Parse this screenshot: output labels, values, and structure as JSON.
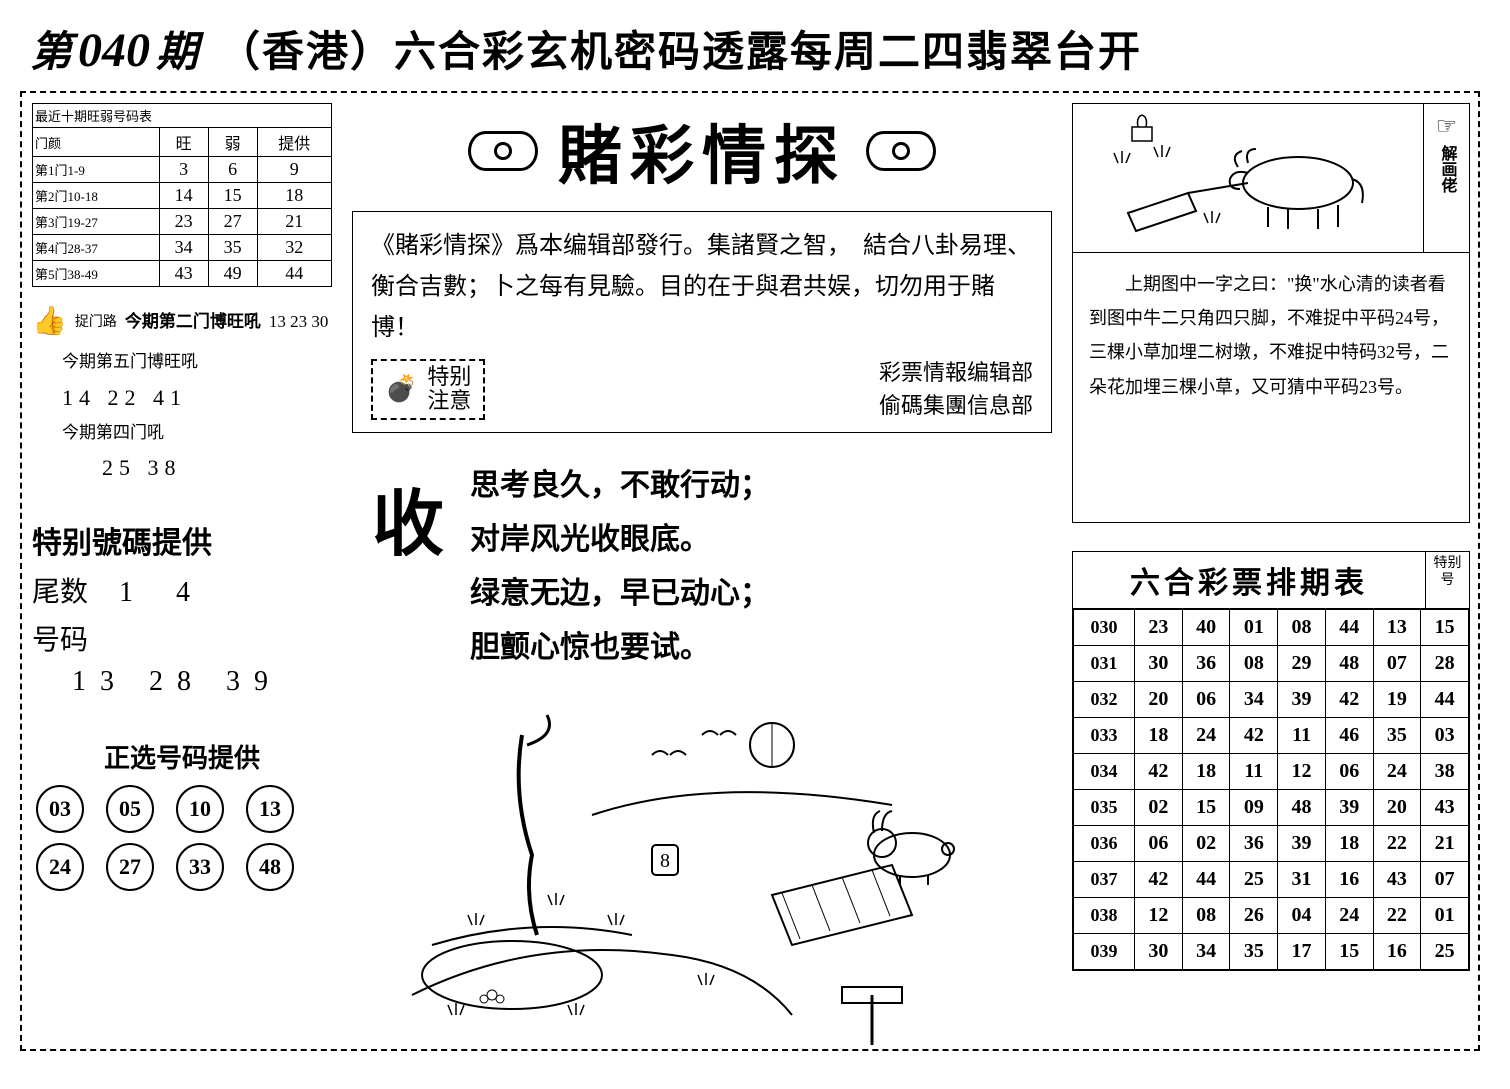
{
  "header": {
    "issue_prefix": "第",
    "issue_no": "040",
    "issue_suffix": "期",
    "title": "（香港）六合彩玄机密码透露每周二四翡翠台开"
  },
  "recent_table": {
    "title": "最近十期旺弱号码表",
    "columns": [
      "门颜",
      "旺",
      "弱",
      "提供"
    ],
    "rows": [
      [
        "第1门1-9",
        "3",
        "6",
        "9"
      ],
      [
        "第2门10-18",
        "14",
        "15",
        "18"
      ],
      [
        "第3门19-27",
        "23",
        "27",
        "21"
      ],
      [
        "第4门28-37",
        "34",
        "35",
        "32"
      ],
      [
        "第5门38-49",
        "43",
        "49",
        "44"
      ]
    ]
  },
  "tips": {
    "label_a": "捉门路",
    "line1_label": "今期第二门博旺吼",
    "line1_nums": "13 23 30",
    "line2_label": "今期第五门博旺吼",
    "line2_nums": "14  22  41",
    "line3_label": "今期第四门吼",
    "line3_nums": "25  38"
  },
  "special": {
    "title": "特别號碼提供",
    "tail_label": "尾数",
    "tail_nums": "1  4",
    "code_label": "号码",
    "code_nums": "13  28  39"
  },
  "picks": {
    "title": "正选号码提供",
    "balls": [
      "03",
      "05",
      "10",
      "13",
      "24",
      "27",
      "33",
      "48"
    ]
  },
  "center": {
    "brush_title": "賭彩情探",
    "intro": "《賭彩情探》爲本编辑部發行。集諸賢之智，　結合八卦易理、衡合吉數；卜之每有見驗。目的在于與君共娱，切勿用于賭博！",
    "notice_label": "特别\n注意",
    "sig1": "彩票情報编辑部",
    "sig2": "偷碼集團信息部",
    "poem_char": "收",
    "poem_lines": [
      "思考良久，不敢行动；",
      "对岸风光收眼底。",
      "绿意无边，早已动心；",
      "胆颤心惊也要试。"
    ]
  },
  "right": {
    "vert_label": "解画佬",
    "text": "　　上期图中一字之曰：\"换\"水心清的读者看到图中牛二只角四只脚，不难捉中平码24号，三棵小草加埋二树墩，不难捉中特码32号，二朵花加埋三棵小草，又可猜中平码23号。"
  },
  "schedule": {
    "title": "六合彩票排期表",
    "special_col": "特别号",
    "rows": [
      [
        "030",
        "23",
        "40",
        "01",
        "08",
        "44",
        "13",
        "15"
      ],
      [
        "031",
        "30",
        "36",
        "08",
        "29",
        "48",
        "07",
        "28"
      ],
      [
        "032",
        "20",
        "06",
        "34",
        "39",
        "42",
        "19",
        "44"
      ],
      [
        "033",
        "18",
        "24",
        "42",
        "11",
        "46",
        "35",
        "03"
      ],
      [
        "034",
        "42",
        "18",
        "11",
        "12",
        "06",
        "24",
        "38"
      ],
      [
        "035",
        "02",
        "15",
        "09",
        "48",
        "39",
        "20",
        "43"
      ],
      [
        "036",
        "06",
        "02",
        "36",
        "39",
        "18",
        "22",
        "21"
      ],
      [
        "037",
        "42",
        "44",
        "25",
        "31",
        "16",
        "43",
        "07"
      ],
      [
        "038",
        "12",
        "08",
        "26",
        "04",
        "24",
        "22",
        "01"
      ],
      [
        "039",
        "30",
        "34",
        "35",
        "17",
        "15",
        "16",
        "25"
      ]
    ]
  },
  "colors": {
    "ink": "#000000",
    "bg": "#ffffff"
  }
}
